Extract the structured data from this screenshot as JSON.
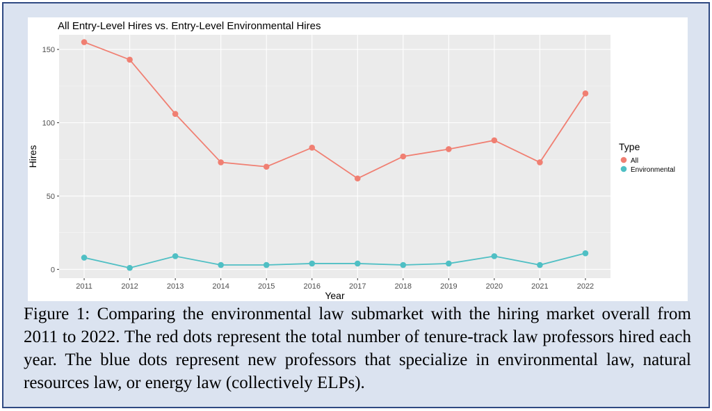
{
  "chart_data": {
    "type": "line",
    "title": "All Entry-Level Hires vs. Entry-Level Environmental Hires",
    "xlabel": "Year",
    "ylabel": "Hires",
    "x": [
      2011,
      2012,
      2013,
      2014,
      2015,
      2016,
      2017,
      2018,
      2019,
      2020,
      2021,
      2022
    ],
    "ylim": [
      -6,
      160
    ],
    "yticks": [
      0,
      50,
      100,
      150
    ],
    "grid": true,
    "legend": {
      "title": "Type",
      "position": "right"
    },
    "series": [
      {
        "name": "All",
        "color": "#f07f72",
        "values": [
          155,
          143,
          106,
          73,
          70,
          83,
          62,
          77,
          82,
          88,
          73,
          120
        ]
      },
      {
        "name": "Environmental",
        "color": "#4fbfc4",
        "values": [
          8,
          1,
          9,
          3,
          3,
          4,
          4,
          3,
          4,
          9,
          3,
          11
        ]
      }
    ]
  },
  "caption": "Figure 1: Comparing the environmental law submarket with the hiring market overall from 2011 to 2022. The red dots represent the total number of tenure-track law professors hired each year. The blue dots represent new professors that specialize in environmental law, natural resources law, or energy law (collectively ELPs)."
}
